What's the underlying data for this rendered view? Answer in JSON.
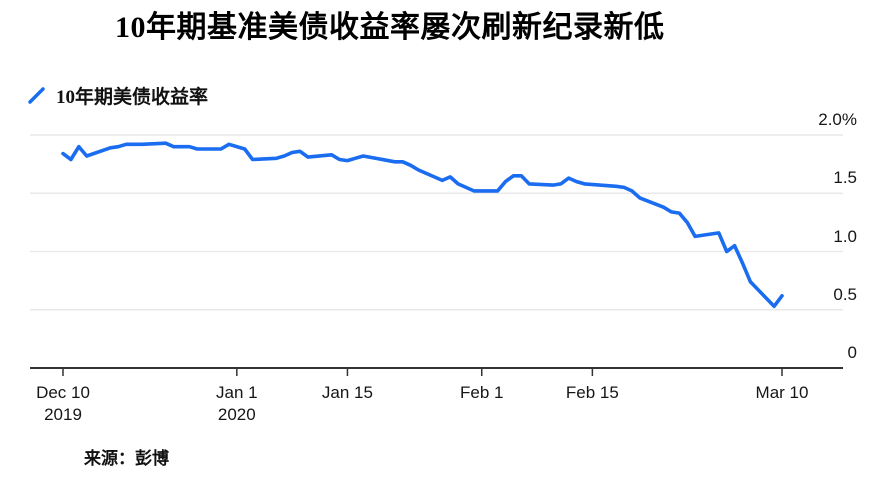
{
  "header": {
    "title": "10年期基准美债收益率屡次刷新纪录新低"
  },
  "legend": {
    "label": "10年期美债收益率"
  },
  "source": {
    "label": "来源：彭博"
  },
  "colors": {
    "line": "#1a6cf0",
    "grid": "#e9e9e9",
    "axis": "#333333",
    "label_text": "#161616"
  },
  "chart_data": {
    "type": "line",
    "title": "10年期基准美债收益率屡次刷新纪录新低",
    "xlabel": "",
    "ylabel": "",
    "unit": "%",
    "grid": "horizontal",
    "legend_position": "top-left",
    "ylim": [
      0,
      2.0
    ],
    "x_range": {
      "start": "2019-12-10",
      "end": "2020-03-10"
    },
    "y_ticks": [
      {
        "value": 2.0,
        "label": "2.0%"
      },
      {
        "value": 1.5,
        "label": "1.5"
      },
      {
        "value": 1.0,
        "label": "1.0"
      },
      {
        "value": 0.5,
        "label": "0.5"
      },
      {
        "value": 0,
        "label": "0"
      }
    ],
    "x_ticks": [
      {
        "date": "2019-12-10",
        "label": "Dec 10",
        "sublabel": "2019"
      },
      {
        "date": "2020-01-01",
        "label": "Jan 1",
        "sublabel": "2020"
      },
      {
        "date": "2020-01-15",
        "label": "Jan 15",
        "sublabel": ""
      },
      {
        "date": "2020-02-01",
        "label": "Feb 1",
        "sublabel": ""
      },
      {
        "date": "2020-02-15",
        "label": "Feb 15",
        "sublabel": ""
      },
      {
        "date": "2020-03-10",
        "label": "Mar 10",
        "sublabel": ""
      }
    ],
    "series": [
      {
        "name": "10年期美债收益率",
        "points": [
          [
            "2019-12-10",
            1.84
          ],
          [
            "2019-12-11",
            1.79
          ],
          [
            "2019-12-12",
            1.9
          ],
          [
            "2019-12-13",
            1.82
          ],
          [
            "2019-12-16",
            1.89
          ],
          [
            "2019-12-17",
            1.9
          ],
          [
            "2019-12-18",
            1.92
          ],
          [
            "2019-12-19",
            1.92
          ],
          [
            "2019-12-20",
            1.92
          ],
          [
            "2019-12-23",
            1.93
          ],
          [
            "2019-12-24",
            1.9
          ],
          [
            "2019-12-26",
            1.9
          ],
          [
            "2019-12-27",
            1.88
          ],
          [
            "2019-12-30",
            1.88
          ],
          [
            "2019-12-31",
            1.92
          ],
          [
            "2020-01-02",
            1.88
          ],
          [
            "2020-01-03",
            1.79
          ],
          [
            "2020-01-06",
            1.8
          ],
          [
            "2020-01-07",
            1.82
          ],
          [
            "2020-01-08",
            1.85
          ],
          [
            "2020-01-09",
            1.86
          ],
          [
            "2020-01-10",
            1.81
          ],
          [
            "2020-01-13",
            1.83
          ],
          [
            "2020-01-14",
            1.79
          ],
          [
            "2020-01-15",
            1.78
          ],
          [
            "2020-01-16",
            1.8
          ],
          [
            "2020-01-17",
            1.82
          ],
          [
            "2020-01-21",
            1.77
          ],
          [
            "2020-01-22",
            1.77
          ],
          [
            "2020-01-23",
            1.74
          ],
          [
            "2020-01-24",
            1.7
          ],
          [
            "2020-01-27",
            1.61
          ],
          [
            "2020-01-28",
            1.64
          ],
          [
            "2020-01-29",
            1.58
          ],
          [
            "2020-01-30",
            1.55
          ],
          [
            "2020-01-31",
            1.52
          ],
          [
            "2020-02-03",
            1.52
          ],
          [
            "2020-02-04",
            1.6
          ],
          [
            "2020-02-05",
            1.65
          ],
          [
            "2020-02-06",
            1.65
          ],
          [
            "2020-02-07",
            1.58
          ],
          [
            "2020-02-10",
            1.57
          ],
          [
            "2020-02-11",
            1.58
          ],
          [
            "2020-02-12",
            1.63
          ],
          [
            "2020-02-13",
            1.6
          ],
          [
            "2020-02-14",
            1.58
          ],
          [
            "2020-02-18",
            1.56
          ],
          [
            "2020-02-19",
            1.55
          ],
          [
            "2020-02-20",
            1.52
          ],
          [
            "2020-02-21",
            1.46
          ],
          [
            "2020-02-24",
            1.38
          ],
          [
            "2020-02-25",
            1.34
          ],
          [
            "2020-02-26",
            1.33
          ],
          [
            "2020-02-27",
            1.25
          ],
          [
            "2020-02-28",
            1.13
          ],
          [
            "2020-03-02",
            1.16
          ],
          [
            "2020-03-03",
            1.0
          ],
          [
            "2020-03-04",
            1.05
          ],
          [
            "2020-03-05",
            0.9
          ],
          [
            "2020-03-06",
            0.74
          ],
          [
            "2020-03-09",
            0.53
          ],
          [
            "2020-03-10",
            0.62
          ]
        ]
      }
    ]
  }
}
